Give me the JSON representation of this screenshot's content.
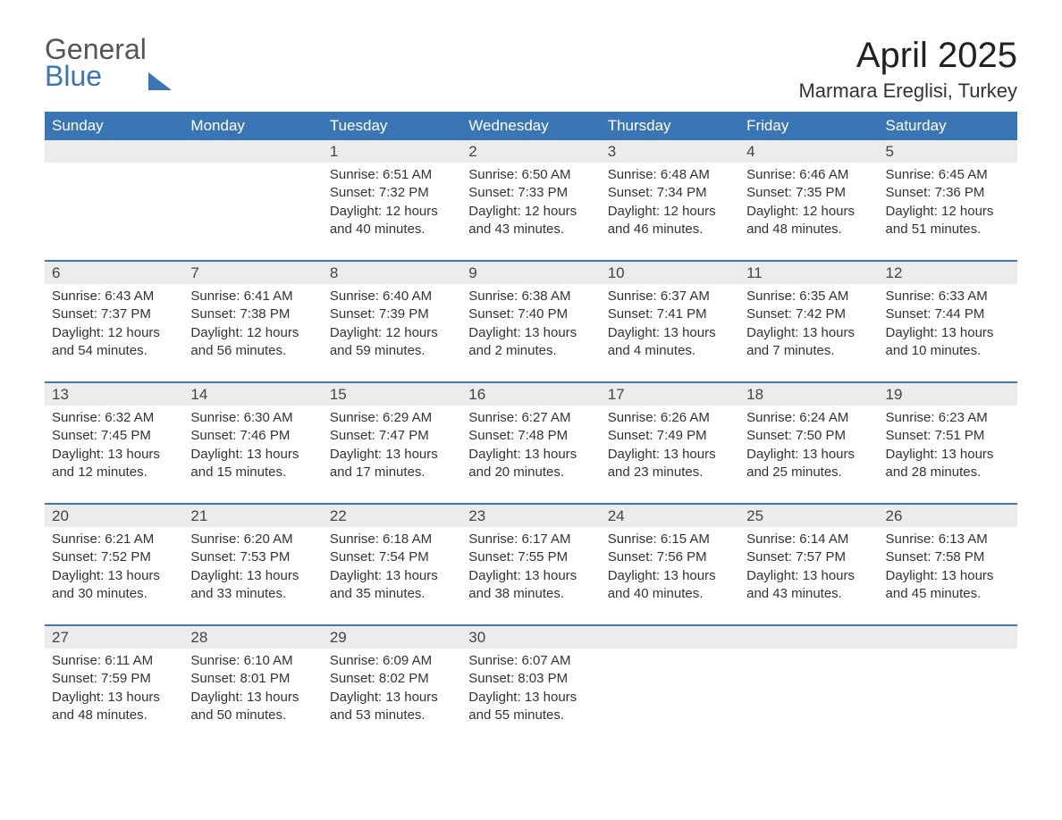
{
  "logo": {
    "word1": "General",
    "word2": "Blue"
  },
  "title": "April 2025",
  "location": "Marmara Ereglisi, Turkey",
  "colors": {
    "header_bg": "#3a76b5",
    "header_text": "#ffffff",
    "daynum_bg": "#ececec",
    "rule": "#3a76b5",
    "body_text": "#333333",
    "logo_gray": "#555555",
    "logo_blue": "#3a76b5",
    "page_bg": "#ffffff"
  },
  "typography": {
    "title_fontsize": 40,
    "location_fontsize": 22,
    "dayname_fontsize": 17,
    "daynum_fontsize": 17,
    "detail_fontsize": 15
  },
  "day_names": [
    "Sunday",
    "Monday",
    "Tuesday",
    "Wednesday",
    "Thursday",
    "Friday",
    "Saturday"
  ],
  "weeks": [
    [
      null,
      null,
      {
        "n": "1",
        "sunrise": "Sunrise: 6:51 AM",
        "sunset": "Sunset: 7:32 PM",
        "daylight": "Daylight: 12 hours and 40 minutes."
      },
      {
        "n": "2",
        "sunrise": "Sunrise: 6:50 AM",
        "sunset": "Sunset: 7:33 PM",
        "daylight": "Daylight: 12 hours and 43 minutes."
      },
      {
        "n": "3",
        "sunrise": "Sunrise: 6:48 AM",
        "sunset": "Sunset: 7:34 PM",
        "daylight": "Daylight: 12 hours and 46 minutes."
      },
      {
        "n": "4",
        "sunrise": "Sunrise: 6:46 AM",
        "sunset": "Sunset: 7:35 PM",
        "daylight": "Daylight: 12 hours and 48 minutes."
      },
      {
        "n": "5",
        "sunrise": "Sunrise: 6:45 AM",
        "sunset": "Sunset: 7:36 PM",
        "daylight": "Daylight: 12 hours and 51 minutes."
      }
    ],
    [
      {
        "n": "6",
        "sunrise": "Sunrise: 6:43 AM",
        "sunset": "Sunset: 7:37 PM",
        "daylight": "Daylight: 12 hours and 54 minutes."
      },
      {
        "n": "7",
        "sunrise": "Sunrise: 6:41 AM",
        "sunset": "Sunset: 7:38 PM",
        "daylight": "Daylight: 12 hours and 56 minutes."
      },
      {
        "n": "8",
        "sunrise": "Sunrise: 6:40 AM",
        "sunset": "Sunset: 7:39 PM",
        "daylight": "Daylight: 12 hours and 59 minutes."
      },
      {
        "n": "9",
        "sunrise": "Sunrise: 6:38 AM",
        "sunset": "Sunset: 7:40 PM",
        "daylight": "Daylight: 13 hours and 2 minutes."
      },
      {
        "n": "10",
        "sunrise": "Sunrise: 6:37 AM",
        "sunset": "Sunset: 7:41 PM",
        "daylight": "Daylight: 13 hours and 4 minutes."
      },
      {
        "n": "11",
        "sunrise": "Sunrise: 6:35 AM",
        "sunset": "Sunset: 7:42 PM",
        "daylight": "Daylight: 13 hours and 7 minutes."
      },
      {
        "n": "12",
        "sunrise": "Sunrise: 6:33 AM",
        "sunset": "Sunset: 7:44 PM",
        "daylight": "Daylight: 13 hours and 10 minutes."
      }
    ],
    [
      {
        "n": "13",
        "sunrise": "Sunrise: 6:32 AM",
        "sunset": "Sunset: 7:45 PM",
        "daylight": "Daylight: 13 hours and 12 minutes."
      },
      {
        "n": "14",
        "sunrise": "Sunrise: 6:30 AM",
        "sunset": "Sunset: 7:46 PM",
        "daylight": "Daylight: 13 hours and 15 minutes."
      },
      {
        "n": "15",
        "sunrise": "Sunrise: 6:29 AM",
        "sunset": "Sunset: 7:47 PM",
        "daylight": "Daylight: 13 hours and 17 minutes."
      },
      {
        "n": "16",
        "sunrise": "Sunrise: 6:27 AM",
        "sunset": "Sunset: 7:48 PM",
        "daylight": "Daylight: 13 hours and 20 minutes."
      },
      {
        "n": "17",
        "sunrise": "Sunrise: 6:26 AM",
        "sunset": "Sunset: 7:49 PM",
        "daylight": "Daylight: 13 hours and 23 minutes."
      },
      {
        "n": "18",
        "sunrise": "Sunrise: 6:24 AM",
        "sunset": "Sunset: 7:50 PM",
        "daylight": "Daylight: 13 hours and 25 minutes."
      },
      {
        "n": "19",
        "sunrise": "Sunrise: 6:23 AM",
        "sunset": "Sunset: 7:51 PM",
        "daylight": "Daylight: 13 hours and 28 minutes."
      }
    ],
    [
      {
        "n": "20",
        "sunrise": "Sunrise: 6:21 AM",
        "sunset": "Sunset: 7:52 PM",
        "daylight": "Daylight: 13 hours and 30 minutes."
      },
      {
        "n": "21",
        "sunrise": "Sunrise: 6:20 AM",
        "sunset": "Sunset: 7:53 PM",
        "daylight": "Daylight: 13 hours and 33 minutes."
      },
      {
        "n": "22",
        "sunrise": "Sunrise: 6:18 AM",
        "sunset": "Sunset: 7:54 PM",
        "daylight": "Daylight: 13 hours and 35 minutes."
      },
      {
        "n": "23",
        "sunrise": "Sunrise: 6:17 AM",
        "sunset": "Sunset: 7:55 PM",
        "daylight": "Daylight: 13 hours and 38 minutes."
      },
      {
        "n": "24",
        "sunrise": "Sunrise: 6:15 AM",
        "sunset": "Sunset: 7:56 PM",
        "daylight": "Daylight: 13 hours and 40 minutes."
      },
      {
        "n": "25",
        "sunrise": "Sunrise: 6:14 AM",
        "sunset": "Sunset: 7:57 PM",
        "daylight": "Daylight: 13 hours and 43 minutes."
      },
      {
        "n": "26",
        "sunrise": "Sunrise: 6:13 AM",
        "sunset": "Sunset: 7:58 PM",
        "daylight": "Daylight: 13 hours and 45 minutes."
      }
    ],
    [
      {
        "n": "27",
        "sunrise": "Sunrise: 6:11 AM",
        "sunset": "Sunset: 7:59 PM",
        "daylight": "Daylight: 13 hours and 48 minutes."
      },
      {
        "n": "28",
        "sunrise": "Sunrise: 6:10 AM",
        "sunset": "Sunset: 8:01 PM",
        "daylight": "Daylight: 13 hours and 50 minutes."
      },
      {
        "n": "29",
        "sunrise": "Sunrise: 6:09 AM",
        "sunset": "Sunset: 8:02 PM",
        "daylight": "Daylight: 13 hours and 53 minutes."
      },
      {
        "n": "30",
        "sunrise": "Sunrise: 6:07 AM",
        "sunset": "Sunset: 8:03 PM",
        "daylight": "Daylight: 13 hours and 55 minutes."
      },
      null,
      null,
      null
    ]
  ]
}
